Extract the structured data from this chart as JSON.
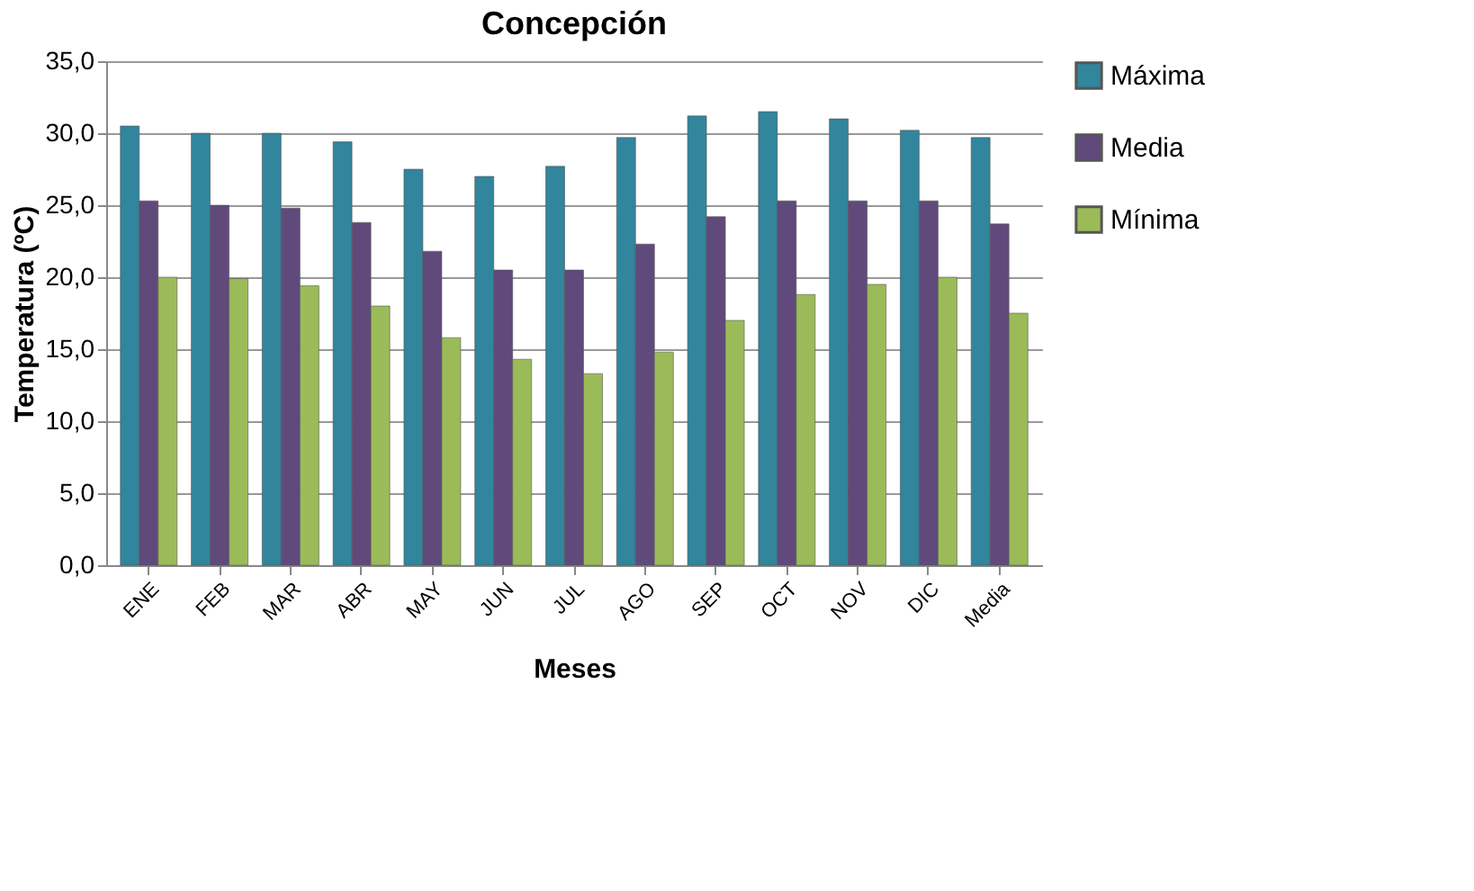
{
  "chart_data": {
    "type": "bar",
    "title": "Concepción",
    "xlabel": "Meses",
    "ylabel": "Temperatura (ºC)",
    "categories": [
      "ENE",
      "FEB",
      "MAR",
      "ABR",
      "MAY",
      "JUN",
      "JUL",
      "AGO",
      "SEP",
      "OCT",
      "NOV",
      "DIC",
      "Media"
    ],
    "series": [
      {
        "name": "Máxima",
        "color": "#31859c",
        "values": [
          30.5,
          30.0,
          30.0,
          29.4,
          27.5,
          27.0,
          27.7,
          29.7,
          31.2,
          31.5,
          31.0,
          30.2,
          29.7
        ]
      },
      {
        "name": "Media",
        "color": "#604a7b",
        "values": [
          25.3,
          25.0,
          24.8,
          23.8,
          21.8,
          20.5,
          20.5,
          22.3,
          24.2,
          25.3,
          25.3,
          25.3,
          23.7
        ]
      },
      {
        "name": "Mínima",
        "color": "#9bbb59",
        "values": [
          20.0,
          19.9,
          19.4,
          18.0,
          15.8,
          14.3,
          13.3,
          14.8,
          17.0,
          18.8,
          19.5,
          20.0,
          17.5
        ]
      }
    ],
    "ylim": [
      0,
      35
    ],
    "yticks": [
      {
        "value": 0,
        "label": "0,0"
      },
      {
        "value": 5,
        "label": "5,0"
      },
      {
        "value": 10,
        "label": "10,0"
      },
      {
        "value": 15,
        "label": "15,0"
      },
      {
        "value": 20,
        "label": "20,0"
      },
      {
        "value": 25,
        "label": "25,0"
      },
      {
        "value": 30,
        "label": "30,0"
      },
      {
        "value": 35,
        "label": "35,0"
      }
    ],
    "grid": "y",
    "legend": "right"
  }
}
